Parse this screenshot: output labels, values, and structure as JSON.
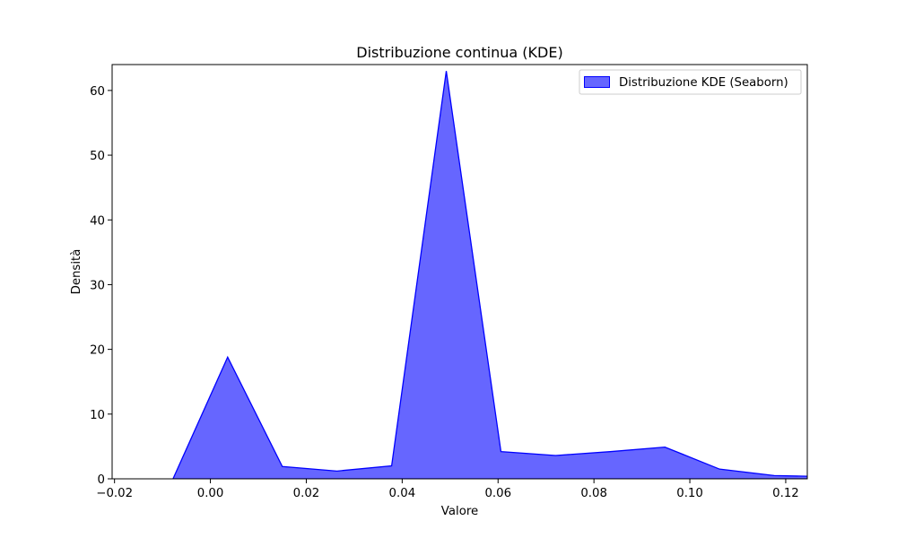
{
  "chart_data": {
    "type": "area",
    "title": "Distribuzione continua (KDE)",
    "xlabel": "Valore",
    "ylabel": "Densità",
    "xlim": [
      -0.0205,
      0.1245
    ],
    "ylim": [
      0,
      64
    ],
    "xticks": [
      {
        "value": -0.02,
        "label": "−0.02"
      },
      {
        "value": 0.0,
        "label": "0.00"
      },
      {
        "value": 0.02,
        "label": "0.02"
      },
      {
        "value": 0.04,
        "label": "0.04"
      },
      {
        "value": 0.06,
        "label": "0.06"
      },
      {
        "value": 0.08,
        "label": "0.08"
      },
      {
        "value": 0.1,
        "label": "0.10"
      },
      {
        "value": 0.12,
        "label": "0.12"
      }
    ],
    "yticks": [
      {
        "value": 0,
        "label": "0"
      },
      {
        "value": 10,
        "label": "10"
      },
      {
        "value": 20,
        "label": "20"
      },
      {
        "value": 30,
        "label": "30"
      },
      {
        "value": 40,
        "label": "40"
      },
      {
        "value": 50,
        "label": "50"
      },
      {
        "value": 60,
        "label": "60"
      }
    ],
    "grid": false,
    "legend_position": "top-right",
    "series": [
      {
        "name": "Distribuzione KDE (Seaborn)",
        "fill_color": "#6666ff",
        "line_color": "#0000ff",
        "x": [
          -0.0078,
          0.0036,
          0.015,
          0.0264,
          0.0378,
          0.0492,
          0.0606,
          0.072,
          0.0834,
          0.0948,
          0.1062,
          0.1176,
          0.1245
        ],
        "y": [
          0.0,
          18.8,
          1.9,
          1.2,
          2.0,
          63.0,
          4.2,
          3.6,
          4.2,
          4.9,
          1.5,
          0.5,
          0.4
        ]
      }
    ]
  }
}
